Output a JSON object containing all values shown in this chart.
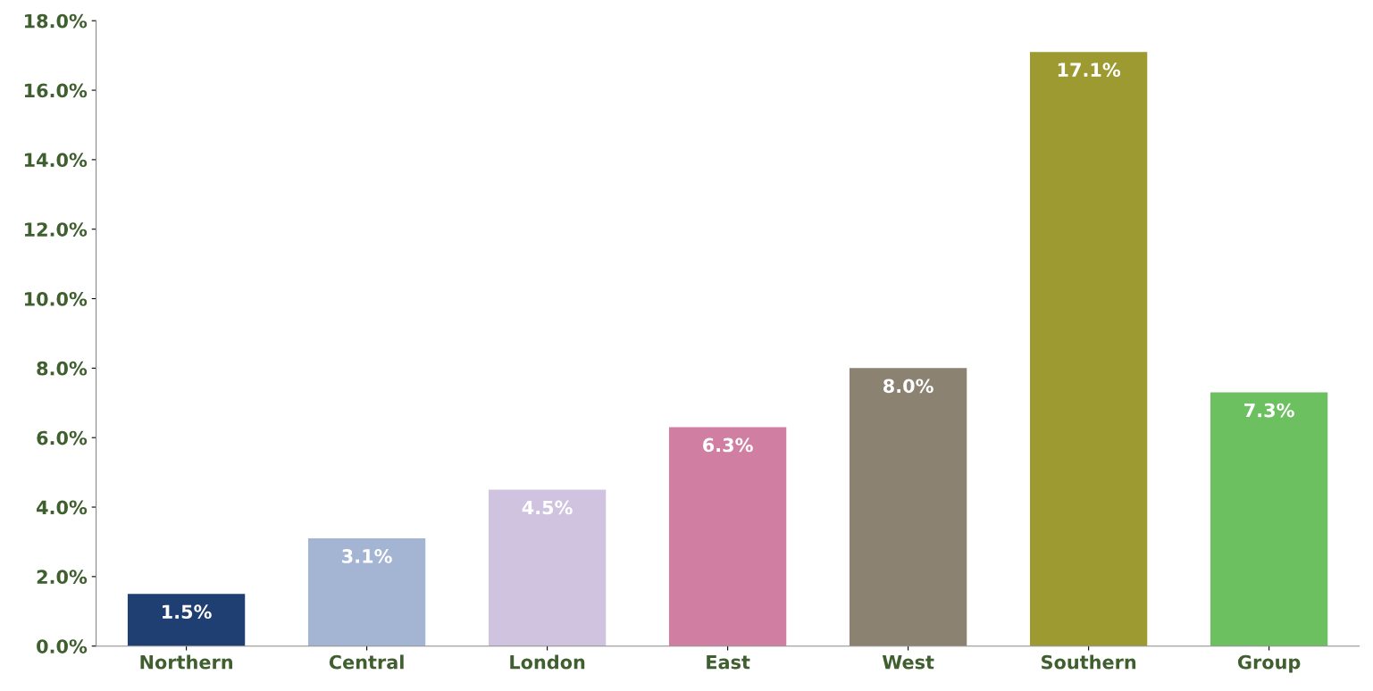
{
  "chart_data": {
    "type": "bar",
    "categories": [
      "Northern",
      "Central",
      "London",
      "East",
      "West",
      "Southern",
      "Group"
    ],
    "values": [
      1.5,
      3.1,
      4.5,
      6.3,
      8.0,
      17.1,
      7.3
    ],
    "value_labels": [
      "1.5%",
      "3.1%",
      "4.5%",
      "6.3%",
      "8.0%",
      "17.1%",
      "7.3%"
    ],
    "colors": [
      "#1f3f73",
      "#a3b5d3",
      "#cfc3df",
      "#d07fa3",
      "#8c8272",
      "#9c9a30",
      "#6cc060"
    ],
    "ylim": [
      0,
      18
    ],
    "yticks": [
      {
        "value": 0,
        "label": "0.0%"
      },
      {
        "value": 2,
        "label": "2.0%"
      },
      {
        "value": 4,
        "label": "4.0%"
      },
      {
        "value": 6,
        "label": "6.0%"
      },
      {
        "value": 8,
        "label": "8.0%"
      },
      {
        "value": 10,
        "label": "10.0%"
      },
      {
        "value": 12,
        "label": "12.0%"
      },
      {
        "value": 14,
        "label": "14.0%"
      },
      {
        "value": 16,
        "label": "16.0%"
      },
      {
        "value": 18,
        "label": "18.0%"
      }
    ],
    "grid": false
  }
}
